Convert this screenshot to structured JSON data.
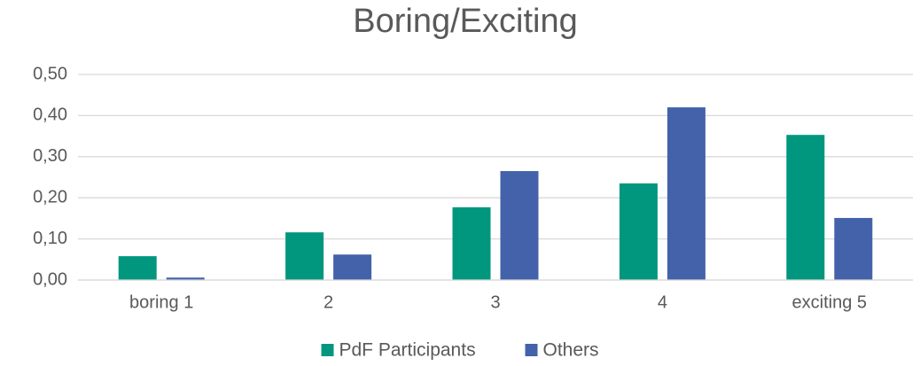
{
  "chart_data": {
    "type": "bar",
    "title": "Boring/Exciting",
    "categories": [
      "boring 1",
      "2",
      "3",
      "4",
      "exciting 5"
    ],
    "series": [
      {
        "name": "PdF Participants",
        "color": "#00977e",
        "values": [
          0.058,
          0.116,
          0.177,
          0.235,
          0.353
        ]
      },
      {
        "name": "Others",
        "color": "#4462aa",
        "values": [
          0.006,
          0.062,
          0.265,
          0.42,
          0.151
        ]
      }
    ],
    "ylim": [
      0,
      0.5
    ],
    "yticks": [
      {
        "value": 0,
        "label": "0,00"
      },
      {
        "value": 0.1,
        "label": "0,10"
      },
      {
        "value": 0.2,
        "label": "0,20"
      },
      {
        "value": 0.3,
        "label": "0,30"
      },
      {
        "value": 0.4,
        "label": "0,40"
      },
      {
        "value": 0.5,
        "label": "0,50"
      }
    ],
    "grid": true,
    "legend": "bottom"
  }
}
